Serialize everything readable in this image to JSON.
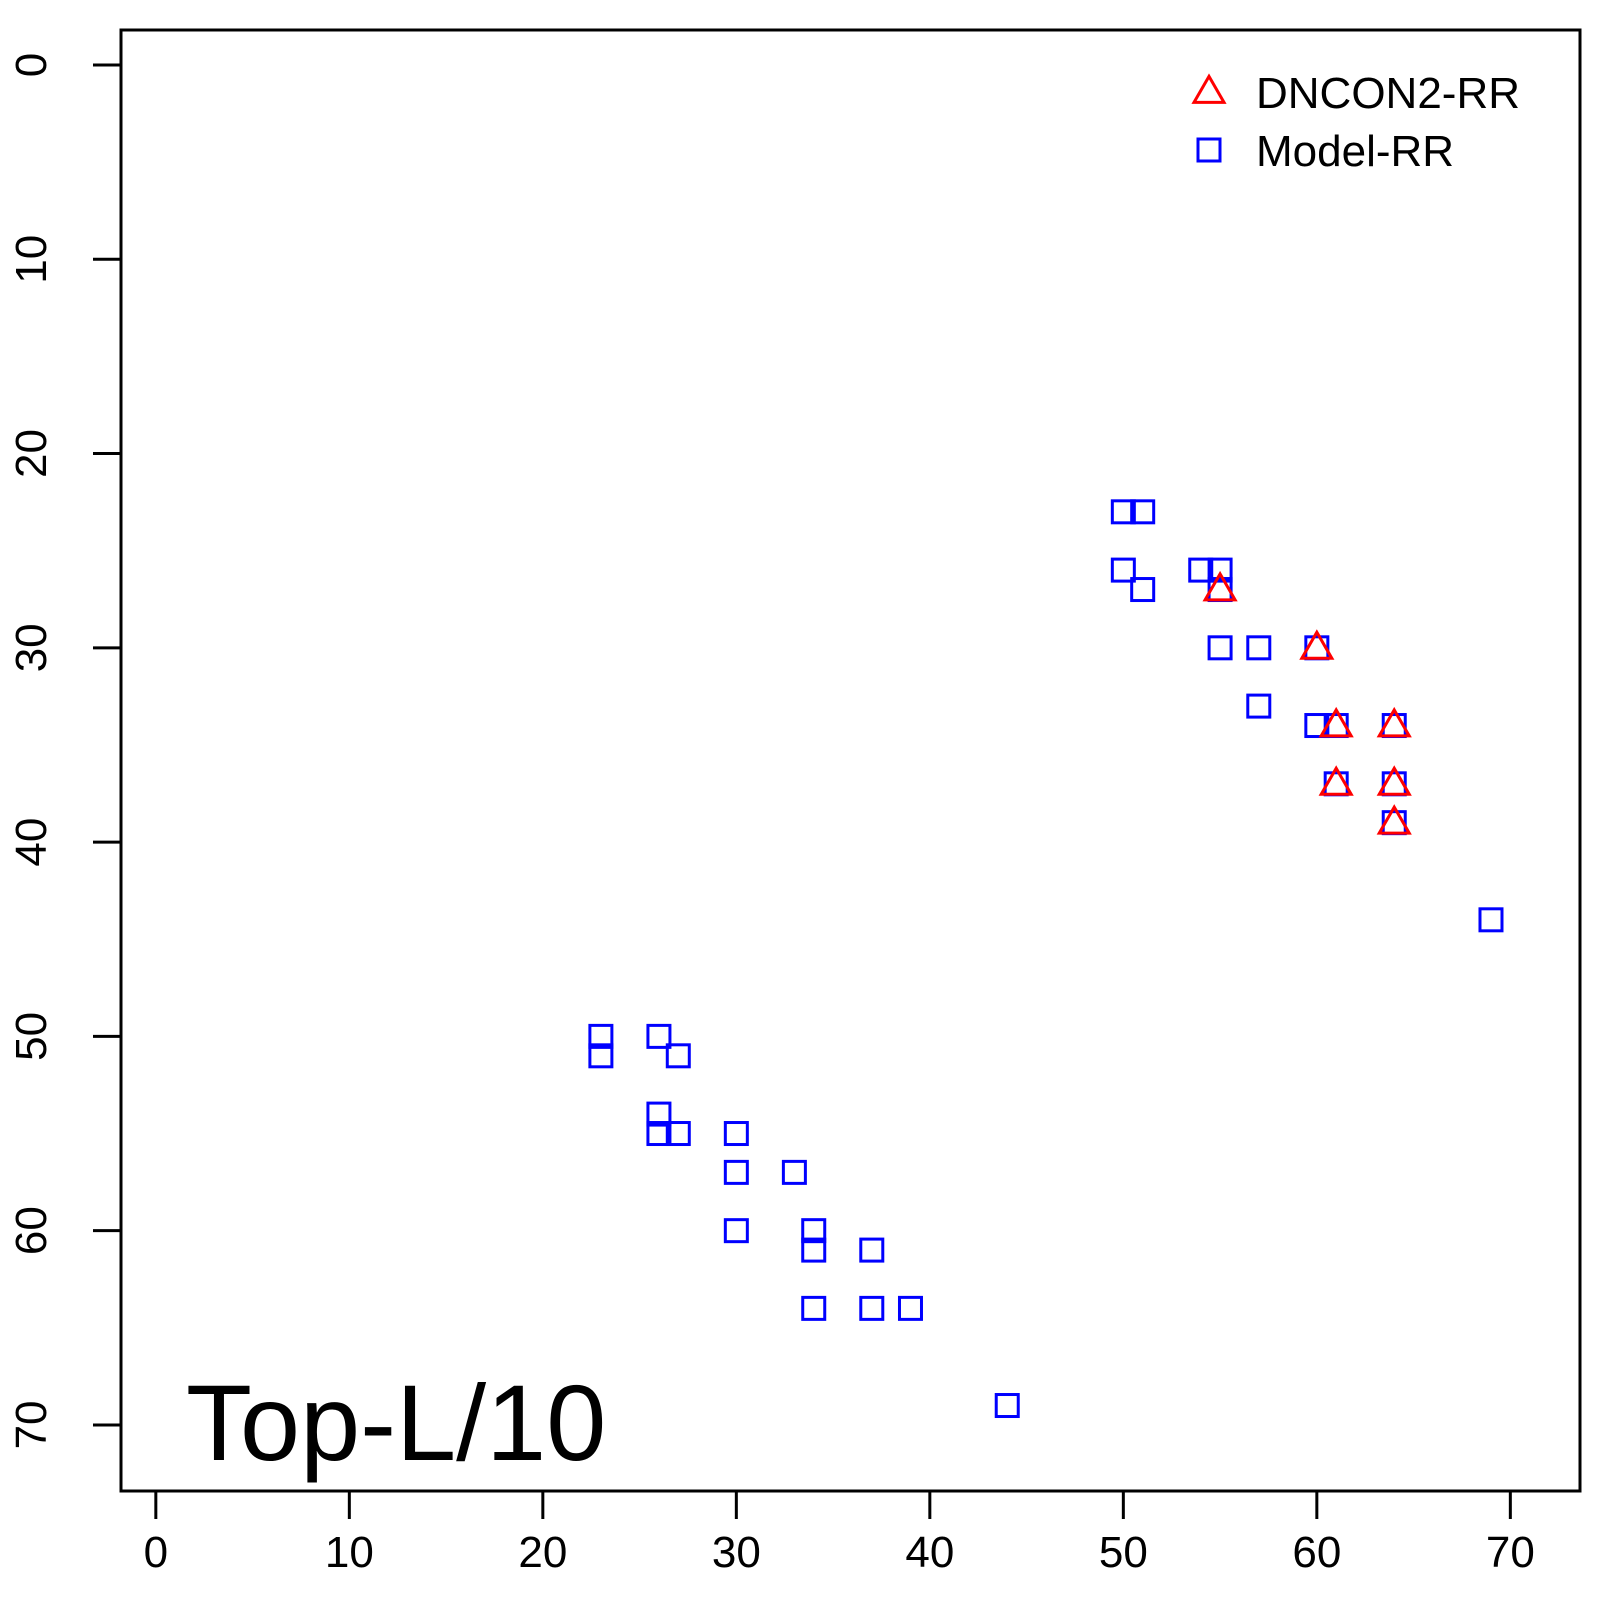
{
  "chart_data": {
    "type": "scatter",
    "title": "",
    "xlabel": "",
    "ylabel": "",
    "xlim": [
      -1.8,
      73.6
    ],
    "ylim": [
      73.4,
      -1.8
    ],
    "y_reversed": true,
    "grid": false,
    "xticks": [
      "0",
      "10",
      "20",
      "30",
      "40",
      "50",
      "60",
      "70"
    ],
    "yticks": [
      "0",
      "10",
      "20",
      "30",
      "40",
      "50",
      "60",
      "70"
    ],
    "annotation": "Top-L/10",
    "legend": {
      "position": "top-right",
      "entries": [
        {
          "label": "DNCON2-RR",
          "marker": "triangle",
          "color": "#ff0000"
        },
        {
          "label": "Model-RR",
          "marker": "square",
          "color": "#0000ff"
        }
      ]
    },
    "series": [
      {
        "name": "DNCON2-RR",
        "marker": "triangle",
        "color": "#ff0000",
        "points": [
          [
            55,
            27
          ],
          [
            60,
            30
          ],
          [
            61,
            34
          ],
          [
            64,
            34
          ],
          [
            61,
            37
          ],
          [
            64,
            37
          ],
          [
            64,
            39
          ]
        ]
      },
      {
        "name": "Model-RR",
        "marker": "square",
        "color": "#0000ff",
        "points": [
          [
            50,
            23
          ],
          [
            51,
            23
          ],
          [
            50,
            26
          ],
          [
            54,
            26
          ],
          [
            55,
            26
          ],
          [
            51,
            27
          ],
          [
            55,
            27
          ],
          [
            55,
            30
          ],
          [
            57,
            30
          ],
          [
            60,
            30
          ],
          [
            57,
            33
          ],
          [
            60,
            34
          ],
          [
            61,
            34
          ],
          [
            64,
            34
          ],
          [
            61,
            37
          ],
          [
            64,
            37
          ],
          [
            64,
            39
          ],
          [
            69,
            44
          ],
          [
            23,
            50
          ],
          [
            26,
            50
          ],
          [
            23,
            51
          ],
          [
            27,
            51
          ],
          [
            26,
            54
          ],
          [
            26,
            55
          ],
          [
            27,
            55
          ],
          [
            30,
            55
          ],
          [
            30,
            57
          ],
          [
            33,
            57
          ],
          [
            30,
            60
          ],
          [
            34,
            60
          ],
          [
            34,
            61
          ],
          [
            37,
            61
          ],
          [
            34,
            64
          ],
          [
            37,
            64
          ],
          [
            39,
            64
          ],
          [
            44,
            69
          ]
        ]
      }
    ]
  }
}
